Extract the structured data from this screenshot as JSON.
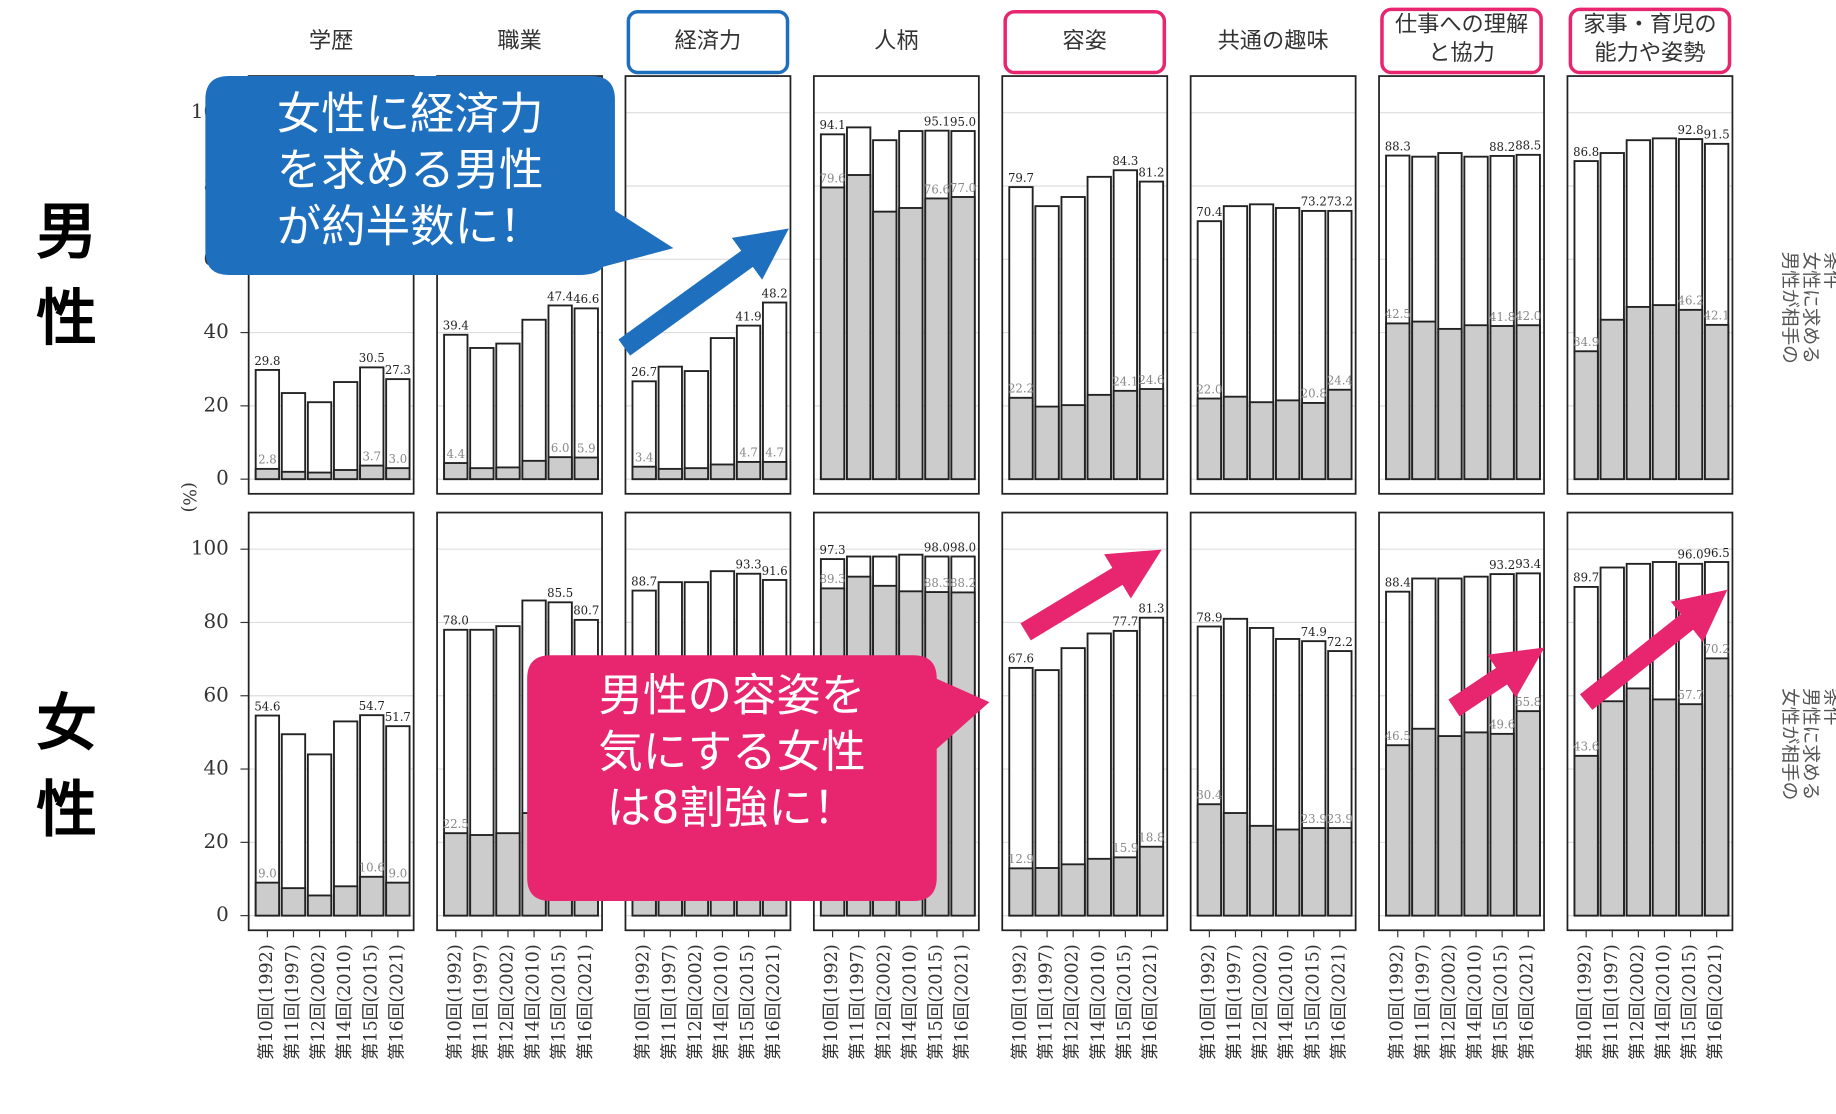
{
  "chart_data": {
    "type": "bar",
    "categories": [
      "第10回(1992)",
      "第11回(1997)",
      "第12回(2002)",
      "第14回(2010)",
      "第15回(2015)",
      "第16回(2021)"
    ],
    "ylim": [
      -4,
      110
    ],
    "yticks": [
      0,
      20,
      40,
      60,
      80,
      100
    ],
    "y_label": "(%)",
    "grid": true,
    "facets": [
      {
        "title": [
          "学歴"
        ]
      },
      {
        "title": [
          "職業"
        ]
      },
      {
        "title": [
          "経済力"
        ],
        "frame_color": "#1f6fbf"
      },
      {
        "title": [
          "人柄"
        ]
      },
      {
        "title": [
          "容姿"
        ],
        "frame_color": "#e8256f"
      },
      {
        "title": [
          "共通の趣味"
        ]
      },
      {
        "title": [
          "仕事への理解",
          "と協力"
        ],
        "frame_color": "#e8256f"
      },
      {
        "title": [
          "家事・育児の",
          "能力や姿勢"
        ],
        "frame_color": "#e8256f"
      }
    ],
    "rows": [
      {
        "label": "男性",
        "side_label": [
          "男性が相手の",
          "女性に求める",
          "条件"
        ],
        "panels": [
          {
            "series": [
              {
                "color": "#ffffff",
                "values": [
                  29.8,
                  23.5,
                  21.0,
                  26.5,
                  30.5,
                  27.3
                ],
                "value_labels": [
                  "29.8",
                  null,
                  null,
                  null,
                  "30.5",
                  "27.3"
                ]
              },
              {
                "color": "#cccccc",
                "values": [
                  2.8,
                  2.0,
                  1.8,
                  2.5,
                  3.7,
                  3.0
                ],
                "value_labels": [
                  "2.8",
                  null,
                  null,
                  null,
                  "3.7",
                  "3.0"
                ]
              }
            ]
          },
          {
            "series": [
              {
                "color": "#ffffff",
                "values": [
                  39.4,
                  35.8,
                  37.0,
                  43.5,
                  47.4,
                  46.6
                ],
                "value_labels": [
                  "39.4",
                  null,
                  null,
                  null,
                  "47.4",
                  "46.6"
                ]
              },
              {
                "color": "#cccccc",
                "values": [
                  4.4,
                  3.0,
                  3.2,
                  5.0,
                  6.0,
                  5.9
                ],
                "value_labels": [
                  "4.4",
                  null,
                  null,
                  null,
                  "6.0",
                  "5.9"
                ]
              }
            ]
          },
          {
            "series": [
              {
                "color": "#ffffff",
                "values": [
                  26.7,
                  30.7,
                  29.5,
                  38.5,
                  41.9,
                  48.2
                ],
                "value_labels": [
                  "26.7",
                  null,
                  null,
                  null,
                  "41.9",
                  "48.2"
                ]
              },
              {
                "color": "#cccccc",
                "values": [
                  3.4,
                  2.8,
                  3.0,
                  4.0,
                  4.7,
                  4.7
                ],
                "value_labels": [
                  "3.4",
                  null,
                  null,
                  null,
                  "4.7",
                  "4.7"
                ]
              }
            ]
          },
          {
            "series": [
              {
                "color": "#ffffff",
                "values": [
                  94.1,
                  96.0,
                  92.5,
                  95.0,
                  95.1,
                  95.0
                ],
                "value_labels": [
                  "94.1",
                  null,
                  null,
                  null,
                  "95.1",
                  "95.0"
                ]
              },
              {
                "color": "#cccccc",
                "values": [
                  79.6,
                  83.0,
                  73.0,
                  74.0,
                  76.6,
                  77.0
                ],
                "value_labels": [
                  "79.6",
                  null,
                  null,
                  null,
                  "76.6",
                  "77.0"
                ]
              }
            ]
          },
          {
            "series": [
              {
                "color": "#ffffff",
                "values": [
                  79.7,
                  74.5,
                  77.0,
                  82.5,
                  84.3,
                  81.2
                ],
                "value_labels": [
                  "79.7",
                  null,
                  null,
                  null,
                  "84.3",
                  "81.2"
                ]
              },
              {
                "color": "#cccccc",
                "values": [
                  22.2,
                  19.8,
                  20.2,
                  23.0,
                  24.1,
                  24.6
                ],
                "value_labels": [
                  "22.2",
                  null,
                  null,
                  null,
                  "24.1",
                  "24.6"
                ]
              }
            ]
          },
          {
            "series": [
              {
                "color": "#ffffff",
                "values": [
                  70.4,
                  74.5,
                  75.0,
                  74.0,
                  73.2,
                  73.2
                ],
                "value_labels": [
                  "70.4",
                  null,
                  null,
                  null,
                  "73.2",
                  "73.2"
                ]
              },
              {
                "color": "#cccccc",
                "values": [
                  22.0,
                  22.5,
                  21.0,
                  21.5,
                  20.8,
                  24.4
                ],
                "value_labels": [
                  "22.0",
                  null,
                  null,
                  null,
                  "20.8",
                  "24.4"
                ]
              }
            ]
          },
          {
            "series": [
              {
                "color": "#ffffff",
                "values": [
                  88.3,
                  88.0,
                  89.0,
                  88.0,
                  88.2,
                  88.5
                ],
                "value_labels": [
                  "88.3",
                  null,
                  null,
                  null,
                  "88.2",
                  "88.5"
                ]
              },
              {
                "color": "#cccccc",
                "values": [
                  42.5,
                  43.0,
                  41.0,
                  42.0,
                  41.8,
                  42.0
                ],
                "value_labels": [
                  "42.5",
                  null,
                  null,
                  null,
                  "41.8",
                  "42.0"
                ]
              }
            ]
          },
          {
            "series": [
              {
                "color": "#ffffff",
                "values": [
                  86.8,
                  89.0,
                  92.5,
                  93.0,
                  92.8,
                  91.5
                ],
                "value_labels": [
                  "86.8",
                  null,
                  null,
                  null,
                  "92.8",
                  "91.5"
                ]
              },
              {
                "color": "#cccccc",
                "values": [
                  34.9,
                  43.5,
                  47.0,
                  47.5,
                  46.2,
                  42.1
                ],
                "value_labels": [
                  "34.9",
                  null,
                  null,
                  null,
                  "46.2",
                  "42.1"
                ]
              }
            ]
          }
        ]
      },
      {
        "label": "女性",
        "side_label": [
          "女性が相手の",
          "男性に求める",
          "条件"
        ],
        "panels": [
          {
            "series": [
              {
                "color": "#ffffff",
                "values": [
                  54.6,
                  49.5,
                  44.0,
                  53.0,
                  54.7,
                  51.7
                ],
                "value_labels": [
                  "54.6",
                  null,
                  null,
                  null,
                  "54.7",
                  "51.7"
                ]
              },
              {
                "color": "#cccccc",
                "values": [
                  9.0,
                  7.5,
                  5.5,
                  8.0,
                  10.6,
                  9.0
                ],
                "value_labels": [
                  "9.0",
                  null,
                  null,
                  null,
                  "10.6",
                  "9.0"
                ]
              }
            ]
          },
          {
            "series": [
              {
                "color": "#ffffff",
                "values": [
                  78.0,
                  78.0,
                  79.0,
                  86.0,
                  85.5,
                  80.7
                ],
                "value_labels": [
                  "78.0",
                  null,
                  null,
                  null,
                  "85.5",
                  "80.7"
                ]
              },
              {
                "color": "#cccccc",
                "values": [
                  22.5,
                  22.0,
                  22.5,
                  28.0,
                  30.0,
                  29.0
                ],
                "value_labels": [
                  "22.5",
                  null,
                  null,
                  null,
                  null,
                  null
                ]
              }
            ]
          },
          {
            "series": [
              {
                "color": "#ffffff",
                "values": [
                  88.7,
                  91.0,
                  91.0,
                  94.0,
                  93.3,
                  91.6
                ],
                "value_labels": [
                  "88.7",
                  null,
                  null,
                  null,
                  "93.3",
                  "91.6"
                ]
              },
              {
                "color": "#cccccc",
                "values": [
                  40.0,
                  39.0,
                  38.0,
                  42.0,
                  41.0,
                  40.0
                ],
                "value_labels": [
                  null,
                  null,
                  null,
                  null,
                  null,
                  null
                ]
              }
            ]
          },
          {
            "series": [
              {
                "color": "#ffffff",
                "values": [
                  97.3,
                  98.0,
                  98.0,
                  98.5,
                  98.0,
                  98.0
                ],
                "value_labels": [
                  "97.3",
                  null,
                  null,
                  null,
                  "98.0",
                  "98.0"
                ]
              },
              {
                "color": "#cccccc",
                "values": [
                  89.3,
                  92.5,
                  90.0,
                  88.5,
                  88.3,
                  88.2
                ],
                "value_labels": [
                  "89.3",
                  null,
                  null,
                  null,
                  "88.3",
                  "88.2"
                ]
              }
            ]
          },
          {
            "series": [
              {
                "color": "#ffffff",
                "values": [
                  67.6,
                  67.0,
                  73.0,
                  77.0,
                  77.7,
                  81.3
                ],
                "value_labels": [
                  "67.6",
                  null,
                  null,
                  null,
                  "77.7",
                  "81.3"
                ]
              },
              {
                "color": "#cccccc",
                "values": [
                  12.9,
                  13.0,
                  14.0,
                  15.5,
                  15.9,
                  18.8
                ],
                "value_labels": [
                  "12.9",
                  null,
                  null,
                  null,
                  "15.9",
                  "18.8"
                ]
              }
            ]
          },
          {
            "series": [
              {
                "color": "#ffffff",
                "values": [
                  78.9,
                  81.0,
                  78.5,
                  75.5,
                  74.9,
                  72.2
                ],
                "value_labels": [
                  "78.9",
                  null,
                  null,
                  null,
                  "74.9",
                  "72.2"
                ]
              },
              {
                "color": "#cccccc",
                "values": [
                  30.4,
                  28.0,
                  24.5,
                  23.5,
                  23.9,
                  23.9
                ],
                "value_labels": [
                  "30.4",
                  null,
                  null,
                  null,
                  "23.9",
                  "23.9"
                ]
              }
            ]
          },
          {
            "series": [
              {
                "color": "#ffffff",
                "values": [
                  88.4,
                  92.0,
                  92.0,
                  92.5,
                  93.2,
                  93.4
                ],
                "value_labels": [
                  "88.4",
                  null,
                  null,
                  null,
                  "93.2",
                  "93.4"
                ]
              },
              {
                "color": "#cccccc",
                "values": [
                  46.5,
                  51.0,
                  49.0,
                  50.0,
                  49.6,
                  55.8
                ],
                "value_labels": [
                  "46.5",
                  null,
                  null,
                  null,
                  "49.6",
                  "55.8"
                ]
              }
            ]
          },
          {
            "series": [
              {
                "color": "#ffffff",
                "values": [
                  89.7,
                  95.0,
                  96.0,
                  96.5,
                  96.0,
                  96.5
                ],
                "value_labels": [
                  "89.7",
                  null,
                  null,
                  null,
                  "96.0",
                  "96.5"
                ]
              },
              {
                "color": "#cccccc",
                "values": [
                  43.6,
                  58.5,
                  62.0,
                  59.0,
                  57.7,
                  70.2
                ],
                "value_labels": [
                  "43.6",
                  null,
                  null,
                  null,
                  "57.7",
                  "70.2"
                ]
              }
            ]
          }
        ]
      }
    ]
  },
  "callouts": [
    {
      "lines": [
        "女性に経済力",
        "を求める男性",
        "が約半数に！"
      ],
      "color": "#1f6fbf"
    },
    {
      "lines": [
        "男性の容姿を",
        "気にする女性",
        "は8割強に！"
      ],
      "color": "#e8256f"
    }
  ]
}
